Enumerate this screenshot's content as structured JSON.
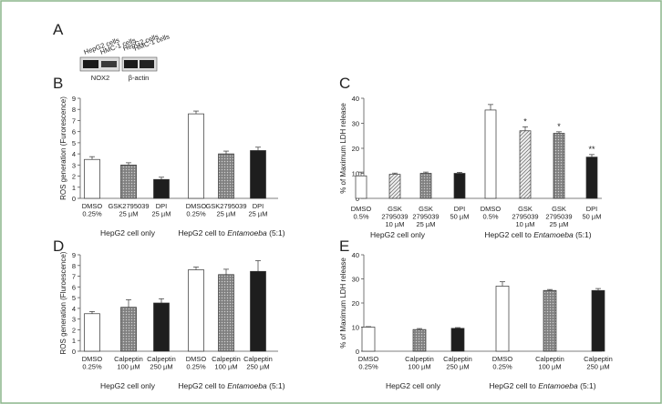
{
  "figure": {
    "frame_color": "#8bb58b"
  },
  "panel_a": {
    "label": "A",
    "lane_labels": [
      "HepG2 cells",
      "HMC-1 cells",
      "HepG2 cells",
      "HMC-1 cells"
    ],
    "blot_labels": [
      "NOX2",
      "β-actin"
    ]
  },
  "chart_data": [
    {
      "id": "B",
      "type": "bar",
      "ylabel": "ROS generation (Furorescence)",
      "ylim": [
        0,
        9
      ],
      "yticks": [
        0,
        1,
        2,
        3,
        4,
        5,
        6,
        7,
        8,
        9
      ],
      "categories": [
        "DMSO|0.25%",
        "GSK2795039|25 µM",
        "DPI|25 µM",
        "DMSO|0.25%",
        "GSK2795039|25 µM",
        "DPI|25 µM"
      ],
      "values": [
        3.5,
        3.0,
        1.7,
        7.6,
        4.0,
        4.3
      ],
      "errors": [
        0.25,
        0.2,
        0.2,
        0.25,
        0.25,
        0.3
      ],
      "fills": [
        "white",
        "grey",
        "black",
        "white",
        "grey",
        "black"
      ],
      "significance": [
        "",
        "",
        "",
        "",
        "",
        ""
      ],
      "groups": [
        {
          "parts": [
            {
              "text": "HepG2 cell only",
              "italic": false
            }
          ]
        },
        {
          "parts": [
            {
              "text": "HepG2 cell to ",
              "italic": false
            },
            {
              "text": "Entamoeba",
              "italic": true
            },
            {
              "text": " (5:1)",
              "italic": false
            }
          ]
        }
      ]
    },
    {
      "id": "C",
      "type": "bar",
      "ylabel": "% of Maximum LDH release",
      "ylim": [
        0,
        40
      ],
      "yticks": [
        0,
        10,
        20,
        30,
        40
      ],
      "categories": [
        "DMSO|0.5%",
        "GSK|2795039|10 µM",
        "GSK|2795039|25 µM",
        "DPI|50 µM",
        "DMSO|0.5%",
        "GSK|2795039|10 µM",
        "GSK|2795039|25 µM",
        "DPI|50 µM"
      ],
      "values": [
        9.0,
        9.6,
        10.0,
        10.0,
        35.3,
        27.0,
        26.0,
        16.5
      ],
      "errors": [
        1.5,
        0.5,
        0.5,
        0.4,
        2.2,
        1.6,
        0.6,
        1.0
      ],
      "fills": [
        "white",
        "light",
        "grey",
        "black",
        "white",
        "light",
        "grey",
        "black"
      ],
      "significance": [
        "",
        "",
        "",
        "",
        "",
        "*",
        "*",
        "**"
      ],
      "groups": [
        {
          "parts": [
            {
              "text": "HepG2 cell only",
              "italic": false
            }
          ]
        },
        {
          "parts": [
            {
              "text": "HepG2 cell to ",
              "italic": false
            },
            {
              "text": "Entamoeba",
              "italic": true
            },
            {
              "text": " (5:1)",
              "italic": false
            }
          ]
        }
      ]
    },
    {
      "id": "D",
      "type": "bar",
      "ylabel": "ROS generation (Fluroescence)",
      "ylim": [
        0,
        9
      ],
      "yticks": [
        0,
        1,
        2,
        3,
        4,
        5,
        6,
        7,
        8,
        9
      ],
      "categories": [
        "DMSO|0.25%",
        "Calpeptin|100 µM",
        "Calpeptin|250 µM",
        "DMSO|0.25%",
        "Calpeptin|100 µM",
        "Calpeptin|250 µM"
      ],
      "values": [
        3.5,
        4.1,
        4.5,
        7.6,
        7.15,
        7.45
      ],
      "errors": [
        0.2,
        0.7,
        0.4,
        0.25,
        0.5,
        1.0
      ],
      "fills": [
        "white",
        "grey",
        "black",
        "white",
        "grey",
        "black"
      ],
      "significance": [
        "",
        "",
        "",
        "",
        "",
        ""
      ],
      "groups": [
        {
          "parts": [
            {
              "text": "HepG2 cell only",
              "italic": false
            }
          ]
        },
        {
          "parts": [
            {
              "text": "HepG2 cell to ",
              "italic": false
            },
            {
              "text": "Entamoeba",
              "italic": true
            },
            {
              "text": " (5:1)",
              "italic": false
            }
          ]
        }
      ]
    },
    {
      "id": "E",
      "type": "bar",
      "ylabel": "% of Maximum LDH release",
      "ylim": [
        0,
        40
      ],
      "yticks": [
        0,
        10,
        20,
        30,
        40
      ],
      "categories": [
        "DMSO|0.25%",
        "Calpeptin|100 µM",
        "Calpeptin|250 µM",
        "DMSO|0.25%",
        "Calpeptin|100 µM",
        "Calpeptin|250 µM"
      ],
      "values": [
        10.0,
        9.0,
        9.5,
        27.0,
        25.2,
        25.2
      ],
      "errors": [
        0.2,
        0.4,
        0.3,
        1.8,
        0.4,
        0.8
      ],
      "fills": [
        "white",
        "grey",
        "black",
        "white",
        "grey",
        "black"
      ],
      "significance": [
        "",
        "",
        "",
        "",
        "",
        ""
      ],
      "groups": [
        {
          "parts": [
            {
              "text": "HepG2 cell only",
              "italic": false
            }
          ]
        },
        {
          "parts": [
            {
              "text": "HepG2 cell to ",
              "italic": false
            },
            {
              "text": "Entamoeba",
              "italic": true
            },
            {
              "text": " (5:1)",
              "italic": false
            }
          ]
        }
      ]
    }
  ]
}
